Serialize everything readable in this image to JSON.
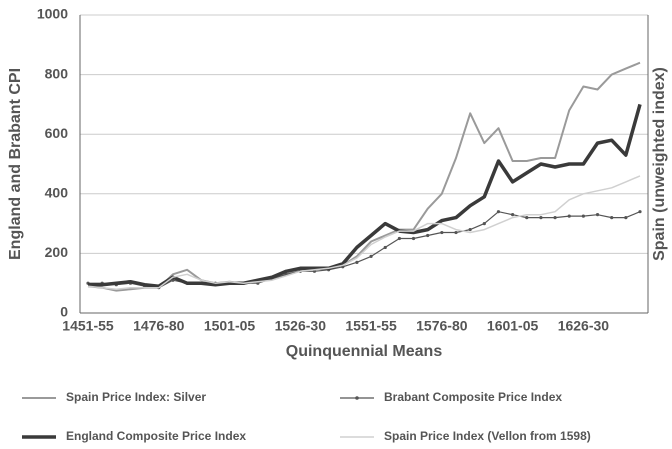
{
  "chart_data": {
    "type": "line",
    "x_label": "Quinquennial Means",
    "y_label": "England and Brabant CPI",
    "y2_label": "Spain (unweighted index)",
    "categories": [
      "1451-55",
      null,
      null,
      null,
      null,
      "1476-80",
      null,
      null,
      null,
      null,
      "1501-05",
      null,
      null,
      null,
      null,
      "1526-30",
      null,
      null,
      null,
      null,
      "1551-55",
      null,
      null,
      null,
      null,
      "1576-80",
      null,
      null,
      null,
      null,
      "1601-05",
      null,
      null,
      null,
      null,
      "1626-30",
      null,
      null,
      null,
      null
    ],
    "ylim": [
      0,
      1000
    ],
    "yticks": [
      0,
      200,
      400,
      600,
      800,
      1000
    ],
    "grid": true,
    "series": [
      {
        "name": "Spain Price Index: Silver",
        "color": "#9a9a9a",
        "values": [
          90,
          85,
          75,
          80,
          85,
          85,
          130,
          145,
          110,
          100,
          105,
          100,
          105,
          115,
          130,
          145,
          150,
          150,
          160,
          190,
          240,
          260,
          280,
          280,
          350,
          400,
          520,
          670,
          570,
          620,
          510,
          510,
          520,
          520,
          680,
          760,
          750,
          800,
          820,
          840
        ]
      },
      {
        "name": "Brabant Composite Price Index",
        "color": "#555555",
        "values": [
          100,
          100,
          95,
          100,
          90,
          85,
          110,
          100,
          100,
          100,
          100,
          100,
          100,
          115,
          130,
          140,
          140,
          145,
          155,
          170,
          190,
          220,
          250,
          250,
          260,
          270,
          270,
          280,
          300,
          340,
          330,
          320,
          320,
          320,
          325,
          325,
          330,
          320,
          320,
          340
        ]
      },
      {
        "name": "England Composite Price Index",
        "color": "#3a3a3a",
        "values": [
          95,
          95,
          100,
          105,
          95,
          90,
          120,
          100,
          100,
          95,
          100,
          100,
          110,
          120,
          140,
          150,
          150,
          150,
          165,
          220,
          260,
          300,
          275,
          270,
          280,
          310,
          320,
          360,
          390,
          510,
          440,
          470,
          500,
          490,
          500,
          500,
          570,
          580,
          530,
          700
        ]
      },
      {
        "name": "Spain Price Index (Vellon from 1598)",
        "color": "#d0d0d0",
        "values": [
          90,
          85,
          80,
          85,
          85,
          85,
          120,
          130,
          110,
          100,
          105,
          100,
          105,
          110,
          125,
          140,
          145,
          150,
          160,
          185,
          230,
          255,
          275,
          275,
          300,
          300,
          280,
          270,
          280,
          300,
          320,
          330,
          330,
          340,
          380,
          400,
          410,
          420,
          440,
          460
        ]
      }
    ]
  }
}
